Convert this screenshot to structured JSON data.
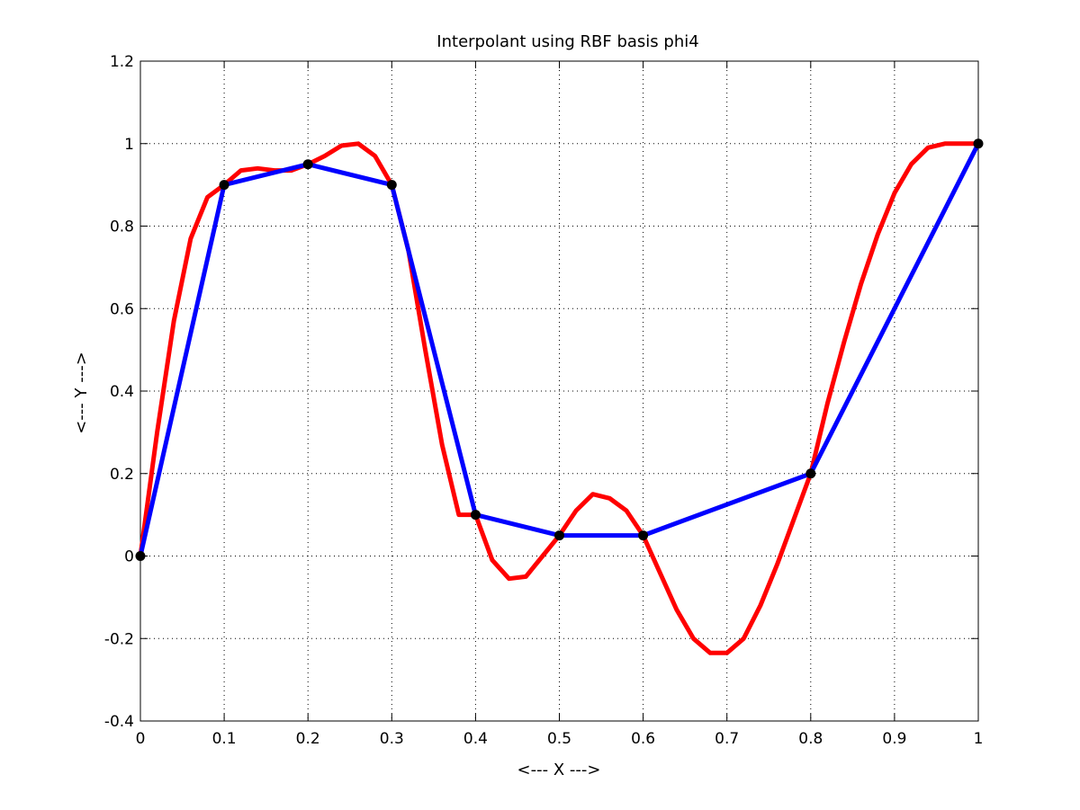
{
  "chart_data": {
    "type": "line",
    "title": "Interpolant using RBF basis phi4",
    "xlabel": "<--- X --->",
    "ylabel": "<--- Y --->",
    "xlim": [
      0,
      1
    ],
    "ylim": [
      -0.4,
      1.2
    ],
    "xticks": [
      0,
      0.1,
      0.2,
      0.3,
      0.4,
      0.5,
      0.6,
      0.7,
      0.8,
      0.9,
      1
    ],
    "yticks": [
      -0.4,
      -0.2,
      0,
      0.2,
      0.4,
      0.6,
      0.8,
      1,
      1.2
    ],
    "xtick_labels": [
      "0",
      "0.1",
      "0.2",
      "0.3",
      "0.4",
      "0.5",
      "0.6",
      "0.7",
      "0.8",
      "0.9",
      "1"
    ],
    "ytick_labels": [
      "-0.4",
      "-0.2",
      "0",
      "0.2",
      "0.4",
      "0.6",
      "0.8",
      "1",
      "1.2"
    ],
    "grid": true,
    "series": [
      {
        "kind": "interpolant-curve",
        "color": "#ff0000",
        "x": [
          0,
          0.02,
          0.04,
          0.06,
          0.08,
          0.1,
          0.12,
          0.14,
          0.16,
          0.18,
          0.2,
          0.22,
          0.24,
          0.26,
          0.28,
          0.3,
          0.32,
          0.34,
          0.36,
          0.38,
          0.4,
          0.42,
          0.44,
          0.46,
          0.48,
          0.5,
          0.52,
          0.54,
          0.56,
          0.58,
          0.6,
          0.62,
          0.64,
          0.66,
          0.68,
          0.7,
          0.72,
          0.74,
          0.76,
          0.78,
          0.8,
          0.82,
          0.84,
          0.86,
          0.88,
          0.9,
          0.92,
          0.94,
          0.96,
          0.98,
          1.0
        ],
        "y": [
          0,
          0.3,
          0.57,
          0.77,
          0.87,
          0.9,
          0.935,
          0.94,
          0.935,
          0.935,
          0.95,
          0.97,
          0.995,
          1.0,
          0.97,
          0.9,
          0.74,
          0.5,
          0.27,
          0.1,
          0.1,
          -0.01,
          -0.055,
          -0.05,
          0.0,
          0.05,
          0.11,
          0.15,
          0.14,
          0.11,
          0.05,
          -0.04,
          -0.13,
          -0.2,
          -0.235,
          -0.235,
          -0.2,
          -0.12,
          -0.02,
          0.09,
          0.2,
          0.37,
          0.52,
          0.66,
          0.78,
          0.88,
          0.95,
          0.99,
          1.0,
          1.0,
          1.0
        ]
      },
      {
        "kind": "linear-interpolant",
        "color": "#0000ff",
        "x": [
          0,
          0.1,
          0.2,
          0.3,
          0.4,
          0.5,
          0.6,
          0.8,
          1
        ],
        "y": [
          0,
          0.9,
          0.95,
          0.9,
          0.1,
          0.05,
          0.05,
          0.2,
          1
        ]
      },
      {
        "kind": "data-points",
        "color": "#000000",
        "x": [
          0,
          0.1,
          0.2,
          0.3,
          0.4,
          0.5,
          0.6,
          0.8,
          1
        ],
        "y": [
          0,
          0.9,
          0.95,
          0.9,
          0.1,
          0.05,
          0.05,
          0.2,
          1
        ]
      }
    ]
  }
}
